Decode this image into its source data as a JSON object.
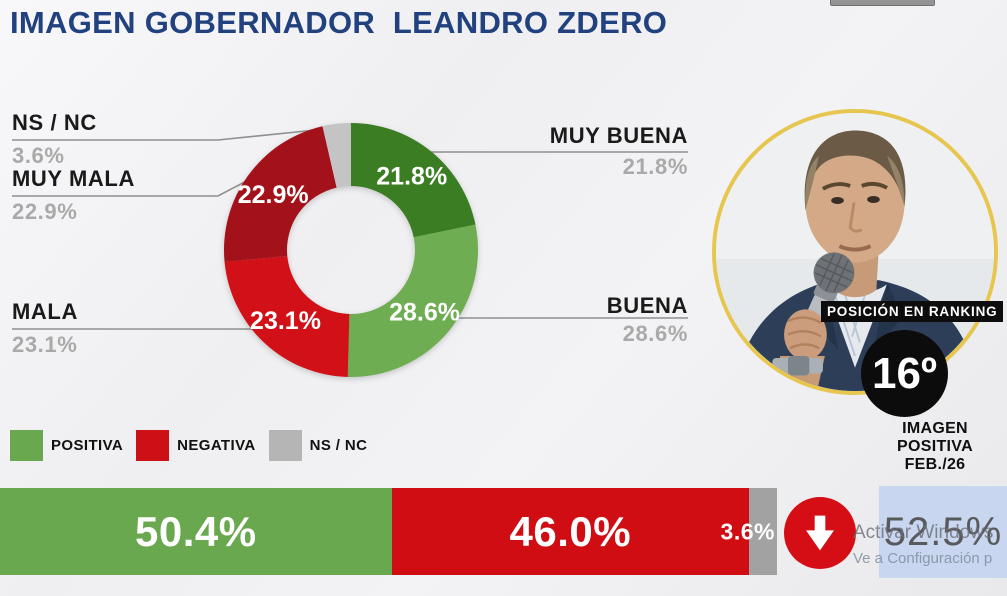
{
  "page": {
    "title": "IMAGEN GOBERNADOR  LEANDRO ZDERO"
  },
  "chart_data": {
    "type": "pie",
    "donut": true,
    "title": "IMAGEN GOBERNADOR LEANDRO ZDERO",
    "unit": "%",
    "segments": [
      {
        "label": "MUY BUENA",
        "value": 21.8,
        "color": "#3a7d22",
        "group": "POSITIVA"
      },
      {
        "label": "BUENA",
        "value": 28.6,
        "color": "#6fad52",
        "group": "POSITIVA"
      },
      {
        "label": "MALA",
        "value": 23.1,
        "color": "#d11018",
        "group": "NEGATIVA"
      },
      {
        "label": "MUY MALA",
        "value": 22.9,
        "color": "#a3111a",
        "group": "NEGATIVA"
      },
      {
        "label": "NS / NC",
        "value": 3.6,
        "color": "#c4c4c4",
        "group": "NS / NC"
      }
    ],
    "legend": [
      {
        "label": "POSITIVA",
        "color": "#6aa84f"
      },
      {
        "label": "NEGATIVA",
        "color": "#cc1015"
      },
      {
        "label": "NS / NC",
        "color": "#b5b5b5"
      }
    ],
    "stacked_bar": {
      "type": "bar",
      "segments": [
        {
          "label": "POSITIVA",
          "value": 50.4,
          "display": "50.4%",
          "color": "#6aa84f"
        },
        {
          "label": "NEGATIVA",
          "value": 46.0,
          "display": "46.0%",
          "color": "#cf0d12"
        },
        {
          "label": "NS / NC",
          "value": 3.6,
          "display": "3.6%",
          "color": "#a2a2a2"
        }
      ]
    }
  },
  "callouts": {
    "ns_nc": {
      "label": "NS / NC",
      "value": "3.6%"
    },
    "muy_mala": {
      "label": "MUY MALA",
      "value": "22.9%"
    },
    "mala": {
      "label": "MALA",
      "value": "23.1%"
    },
    "muy_buena": {
      "label": "MUY BUENA",
      "value": "21.8%"
    },
    "buena": {
      "label": "BUENA",
      "value": "28.6%"
    }
  },
  "ranking": {
    "caption": "POSICIÓN EN RANKING",
    "value": "16º"
  },
  "positive_image": {
    "caption": "IMAGEN\nPOSITIVA\nFEB./26",
    "value": "52.5%",
    "trend": "down",
    "trend_color": "#d40e14",
    "box_color": "#c8d6f0"
  },
  "watermark": {
    "line1": "Activar Windows",
    "line2": "Ve a Configuración p"
  }
}
